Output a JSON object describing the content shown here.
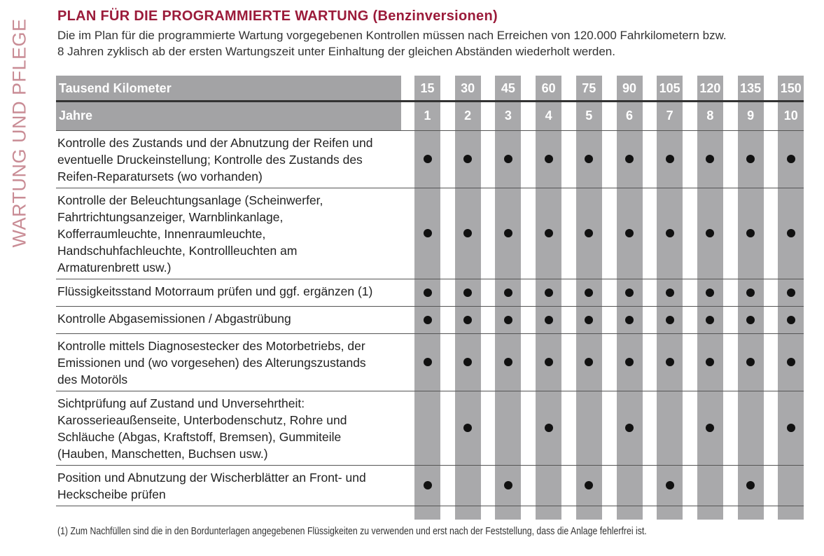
{
  "side_label": "WARTUNG UND PFLEGE",
  "title": "PLAN FÜR DIE PROGRAMMIERTE WARTUNG (Benzinversionen)",
  "intro": [
    "Die im Plan für die programmierte Wartung vorgegebenen Kontrollen müssen nach Erreichen von 120.000 Fahrkilometern bzw.",
    "8 Jahren zyklisch ab der ersten Wartungszeit unter Einhaltung der gleichen Abständen wiederholt werden."
  ],
  "table": {
    "km_label": "Tausend Kilometer",
    "km": [
      "15",
      "30",
      "45",
      "60",
      "75",
      "90",
      "105",
      "120",
      "135",
      "150"
    ],
    "years_label": "Jahre",
    "years": [
      "1",
      "2",
      "3",
      "4",
      "5",
      "6",
      "7",
      "8",
      "9",
      "10"
    ],
    "rows": [
      {
        "text": [
          "Kontrolle des Zustands und der Abnutzung der Reifen und",
          "eventuelle Druckeinstellung; Kontrolle des Zustands des",
          "Reifen-Reparatursets (wo vorhanden)"
        ],
        "checks": [
          true,
          true,
          true,
          true,
          true,
          true,
          true,
          true,
          true,
          true
        ]
      },
      {
        "text": [
          "Kontrolle der Beleuchtungsanlage (Scheinwerfer,",
          "Fahrtrichtungsanzeiger, Warnblinkanlage,",
          "Kofferraumleuchte, Innenraumleuchte,",
          "Handschuhfachleuchte, Kontrollleuchten am",
          "Armaturenbrett usw.)"
        ],
        "checks": [
          true,
          true,
          true,
          true,
          true,
          true,
          true,
          true,
          true,
          true
        ]
      },
      {
        "text": [
          "Flüssigkeitsstand Motorraum prüfen und ggf. ergänzen (1)"
        ],
        "checks": [
          true,
          true,
          true,
          true,
          true,
          true,
          true,
          true,
          true,
          true
        ]
      },
      {
        "text": [
          "Kontrolle Abgasemissionen / Abgastrübung"
        ],
        "checks": [
          true,
          true,
          true,
          true,
          true,
          true,
          true,
          true,
          true,
          true
        ]
      },
      {
        "text": [
          "Kontrolle mittels Diagnosestecker des Motorbetriebs, der",
          "Emissionen und (wo vorgesehen) des Alterungszustands",
          "des Motoröls"
        ],
        "checks": [
          true,
          true,
          true,
          true,
          true,
          true,
          true,
          true,
          true,
          true
        ]
      },
      {
        "text": [
          "Sichtprüfung auf Zustand und Unversehrtheit:",
          "Karosserieaußenseite, Unterbodenschutz, Rohre und",
          "Schläuche (Abgas, Kraftstoff, Bremsen), Gummiteile",
          "(Hauben, Manschetten, Buchsen usw.)"
        ],
        "checks": [
          false,
          true,
          false,
          true,
          false,
          true,
          false,
          true,
          false,
          true
        ]
      },
      {
        "text": [
          "Position und Abnutzung der Wischerblätter an Front- und",
          "Heckscheibe prüfen"
        ],
        "checks": [
          true,
          false,
          true,
          false,
          true,
          false,
          true,
          false,
          true,
          false
        ]
      }
    ]
  },
  "footnote": "(1) Zum Nachfüllen sind die in den Bordunterlagen angegebenen Flüssigkeiten zu verwenden und erst nach der Feststellung, dass die Anlage fehlerfrei ist."
}
